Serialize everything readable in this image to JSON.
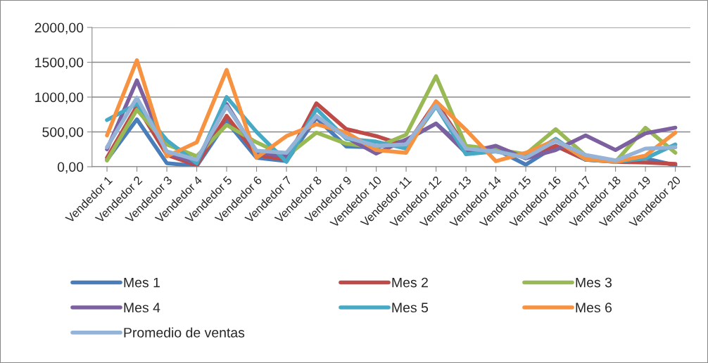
{
  "chart_data": {
    "type": "line",
    "categories": [
      "Vendedor 1",
      "Vendedor 2",
      "Vendedor 3",
      "Vendedor 4",
      "Vendedor 5",
      "Vendedor 6",
      "Vendedor 7",
      "Vendedor 8",
      "Vendedor 9",
      "Vendedor 10",
      "Vendedor 11",
      "Vendedor 12",
      "Vendedor 13",
      "Vendedor 14",
      "Vendedor 15",
      "Vendedor 16",
      "Vendedor 17",
      "Vendedor 18",
      "Vendedor 19",
      "Vendedor 20"
    ],
    "series": [
      {
        "name": "Mes 1",
        "color": "#4a7ebb",
        "values": [
          100,
          680,
          50,
          10,
          650,
          130,
          80,
          700,
          290,
          280,
          380,
          620,
          240,
          250,
          30,
          300,
          100,
          80,
          120,
          20
        ]
      },
      {
        "name": "Mes 2",
        "color": "#be4b48",
        "values": [
          130,
          870,
          170,
          20,
          730,
          170,
          100,
          910,
          540,
          440,
          300,
          930,
          270,
          240,
          130,
          300,
          100,
          70,
          60,
          40
        ]
      },
      {
        "name": "Mes 3",
        "color": "#98b954",
        "values": [
          90,
          820,
          320,
          150,
          600,
          350,
          150,
          490,
          330,
          280,
          460,
          1300,
          300,
          250,
          180,
          540,
          160,
          70,
          560,
          200
        ]
      },
      {
        "name": "Mes 4",
        "color": "#7d60a0",
        "values": [
          250,
          1240,
          200,
          50,
          900,
          200,
          150,
          720,
          420,
          190,
          390,
          620,
          200,
          300,
          120,
          240,
          450,
          240,
          480,
          560
        ]
      },
      {
        "name": "Mes 5",
        "color": "#46aac5",
        "values": [
          670,
          900,
          380,
          50,
          1000,
          500,
          70,
          830,
          400,
          360,
          260,
          870,
          180,
          220,
          140,
          400,
          100,
          70,
          120,
          320
        ]
      },
      {
        "name": "Mes 6",
        "color": "#f69240",
        "values": [
          450,
          1530,
          150,
          350,
          1390,
          130,
          440,
          610,
          490,
          240,
          200,
          940,
          530,
          80,
          200,
          380,
          110,
          70,
          160,
          490
        ]
      },
      {
        "name": "Promedio de ventas",
        "color": "#95b3d7",
        "values": [
          280,
          990,
          220,
          100,
          870,
          230,
          200,
          730,
          420,
          300,
          320,
          880,
          260,
          220,
          130,
          370,
          170,
          90,
          260,
          280
        ]
      }
    ],
    "ylim": [
      0,
      2000
    ],
    "yticks": [
      {
        "value": 0,
        "label": "0,00"
      },
      {
        "value": 500,
        "label": "500,00"
      },
      {
        "value": 1000,
        "label": "1000,00"
      },
      {
        "value": 1500,
        "label": "1500,00"
      },
      {
        "value": 2000,
        "label": "2000,00"
      }
    ],
    "grid": "y",
    "legend": "bottom",
    "marker": "none",
    "line_style": "solid"
  }
}
